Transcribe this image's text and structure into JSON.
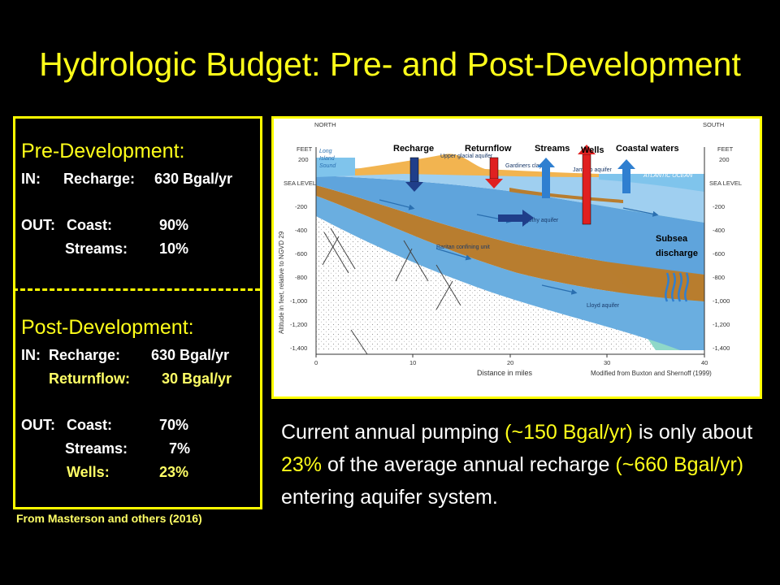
{
  "title": "Hydrologic Budget: Pre- and Post-Development",
  "pre": {
    "heading": "Pre-Development:",
    "in_label": "IN:",
    "in_item": "Recharge:",
    "in_value": "630 Bgal/yr",
    "out_label": "OUT:",
    "out_items": [
      {
        "name": "Coast:",
        "value": "90%"
      },
      {
        "name": "Streams:",
        "value": "10%"
      }
    ]
  },
  "post": {
    "heading": "Post-Development:",
    "in_label": "IN:",
    "in_items": [
      {
        "name": "Recharge:",
        "value": "630 Bgal/yr"
      },
      {
        "name": "Returnflow:",
        "value": "30 Bgal/yr"
      }
    ],
    "out_label": "OUT:",
    "out_items": [
      {
        "name": "Coast:",
        "value": "70%"
      },
      {
        "name": "Streams:",
        "value": "7%"
      },
      {
        "name": "Wells:",
        "value": "23%"
      }
    ]
  },
  "credit": "From Masterson and others (2016)",
  "figure": {
    "north": "NORTH",
    "south": "SOUTH",
    "feet": "FEET",
    "sea_level": "SEA LEVEL",
    "y_ticks": [
      "200",
      "-200",
      "-400",
      "-600",
      "-800",
      "-1,000",
      "-1,200",
      "-1,400"
    ],
    "x_ticks": [
      "0",
      "10",
      "20",
      "30",
      "40"
    ],
    "y_axis_label": "Altitude in feet, relative to NGVD 29",
    "x_axis_label": "Distance in miles",
    "source": "Modified from Buxton and Shernoff (1999)",
    "long_island_sound": [
      "Long",
      "Island",
      "Sound"
    ],
    "atlantic_ocean": "ATLANTIC OCEAN",
    "upper_glacial": "Upper glacial aquifer",
    "gardiners_clay": "Gardiners clay",
    "jameco": "Jameco aquifer",
    "magothy": "Magothy aquifer",
    "raritan": "Raritan confining unit",
    "lloyd": "Lloyd aquifer",
    "labels": {
      "recharge": "Recharge",
      "returnflow": "Returnflow",
      "streams": "Streams",
      "wells": "Wells",
      "coastal": "Coastal waters",
      "subsea1": "Subsea",
      "subsea2": "discharge"
    }
  },
  "caption": {
    "p1": "Current annual pumping ",
    "h1": "(~150 Bgal/yr)",
    "p2": " is only about ",
    "h2": "23%",
    "p3": " of the average annual recharge ",
    "h3": "(~660 Bgal/yr)",
    "p4": " entering aquifer system."
  }
}
